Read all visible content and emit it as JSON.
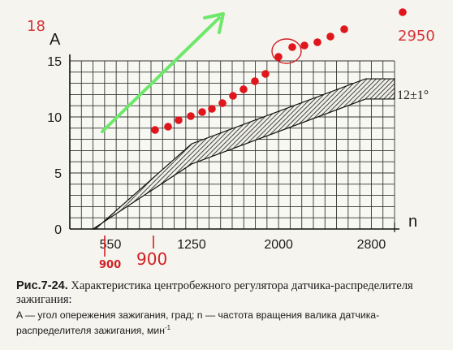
{
  "chart_data": {
    "type": "area",
    "title": "",
    "ylabel": "A",
    "xlabel": "n",
    "xlim": [
      200,
      3000
    ],
    "ylim": [
      0,
      15
    ],
    "x_ticks": [
      "550",
      "1250",
      "2000",
      "2800"
    ],
    "x_tick_values": [
      550,
      1250,
      2000,
      2800
    ],
    "y_ticks": [
      "0",
      "5",
      "10",
      "15"
    ],
    "y_tick_values": [
      0,
      5,
      10,
      15
    ],
    "grid": true,
    "band_label": "12±1°",
    "series": [
      {
        "band_lower": [
          [
            400,
            0
          ],
          [
            1250,
            5.8
          ],
          [
            2750,
            11.6
          ],
          [
            3000,
            11.6
          ]
        ],
        "band_upper": [
          [
            400,
            0
          ],
          [
            420,
            0
          ],
          [
            1250,
            7.6
          ],
          [
            2750,
            13.4
          ],
          [
            3000,
            13.4
          ]
        ]
      }
    ]
  },
  "annotations": {
    "corner_left": "18",
    "corner_right": "2950",
    "tick_900_a": "900",
    "tick_900_b": "900",
    "red_dots": [
      [
        16,
        9
      ],
      [
        20,
        11
      ],
      [
        24,
        12
      ]
    ],
    "dot_color": "#e0161c",
    "arrow_color": "#6ee86a",
    "ink_color": "#d21f24"
  },
  "caption": {
    "fig_label": "Рис.7-24.",
    "title_rest": " Характеристика центробежного регулятора датчика-распределителя зажигания:",
    "description": "A — угол опережения зажигания, град; n — частота вращения валика датчика-распределителя зажигания, мин",
    "description_sup": "-1"
  }
}
